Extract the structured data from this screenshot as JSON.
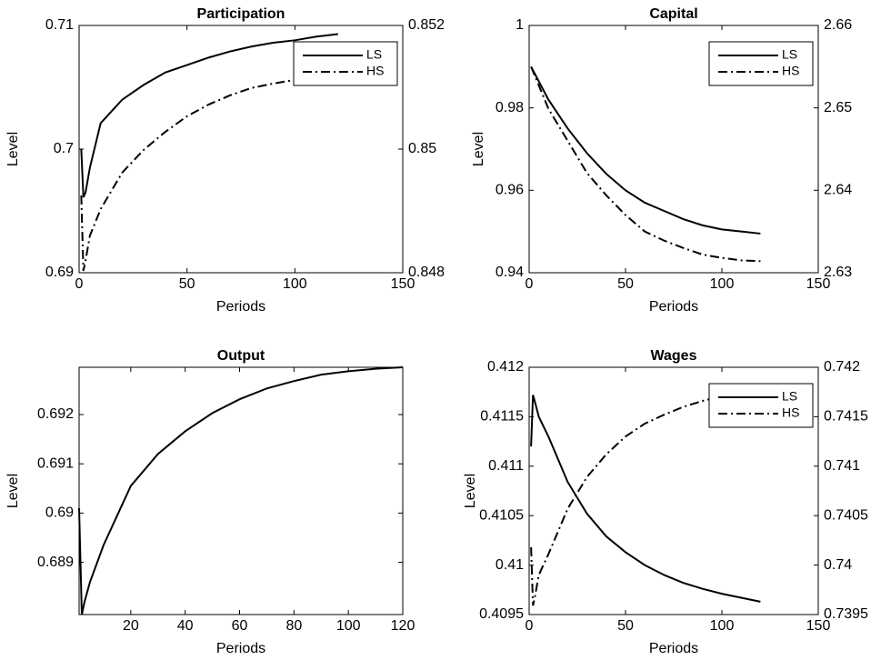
{
  "chart_data": [
    {
      "type": "line",
      "title": "Participation",
      "xlabel": "Periods",
      "ylabel": "Level",
      "x": [
        1,
        2,
        3,
        5,
        10,
        20,
        30,
        40,
        50,
        60,
        70,
        80,
        90,
        100,
        110,
        120
      ],
      "series": [
        {
          "name": "LS",
          "color": "#000000",
          "dash": "solid",
          "values": [
            0.7,
            0.6961,
            0.6965,
            0.6985,
            0.7021,
            0.704,
            0.7052,
            0.7062,
            0.7068,
            0.7074,
            0.7079,
            0.7083,
            0.7086,
            0.7088,
            0.7091,
            0.7093
          ]
        },
        {
          "name": "HS",
          "color": "#000000",
          "dash": "dashdot",
          "axis": "y2",
          "values": [
            0.84925,
            0.84803,
            0.8482,
            0.8486,
            0.84903,
            0.84962,
            0.84999,
            0.85028,
            0.85053,
            0.85072,
            0.85087,
            0.85099,
            0.85106,
            0.85112,
            0.85118,
            0.85122
          ]
        }
      ],
      "xlim": [
        0,
        150
      ],
      "xticks": [
        0,
        50,
        100,
        150
      ],
      "ylim": [
        0.69,
        0.71
      ],
      "yticks": [
        0.69,
        0.7,
        0.71
      ],
      "y2lim": [
        0.848,
        0.852
      ],
      "y2ticks": [
        0.848,
        0.85,
        0.852
      ],
      "legend": "northeast"
    },
    {
      "type": "line",
      "title": "Capital",
      "xlabel": "Periods",
      "ylabel": "Level",
      "x": [
        1,
        10,
        20,
        30,
        40,
        50,
        60,
        70,
        80,
        90,
        100,
        110,
        120
      ],
      "series": [
        {
          "name": "LS",
          "color": "#000000",
          "dash": "solid",
          "values": [
            0.99,
            0.982,
            0.975,
            0.969,
            0.964,
            0.96,
            0.957,
            0.955,
            0.953,
            0.9515,
            0.9505,
            0.95,
            0.9495
          ]
        },
        {
          "name": "HS",
          "color": "#000000",
          "dash": "dashdot",
          "axis": "y2",
          "values": [
            2.655,
            2.6499,
            2.646,
            2.6421,
            2.6394,
            2.637,
            2.635,
            2.6339,
            2.633,
            2.6322,
            2.6318,
            2.6315,
            2.6314
          ]
        }
      ],
      "xlim": [
        0,
        150
      ],
      "xticks": [
        0,
        50,
        100,
        150
      ],
      "ylim": [
        0.94,
        1
      ],
      "yticks": [
        0.94,
        0.96,
        0.98,
        1
      ],
      "y2lim": [
        2.63,
        2.66
      ],
      "y2ticks": [
        2.63,
        2.64,
        2.65,
        2.66
      ],
      "legend": "northeast"
    },
    {
      "type": "line",
      "title": "Output",
      "xlabel": "Periods",
      "ylabel": "Level",
      "x": [
        1,
        2,
        3,
        5,
        10,
        20,
        30,
        40,
        50,
        60,
        70,
        80,
        90,
        100,
        110,
        120
      ],
      "series": [
        {
          "color": "#000000",
          "dash": "solid",
          "values": [
            0.6901,
            0.68794,
            0.6882,
            0.6886,
            0.68935,
            0.69055,
            0.6912,
            0.69166,
            0.69203,
            0.69231,
            0.69253,
            0.69268,
            0.69281,
            0.69288,
            0.69293,
            0.69296
          ]
        }
      ],
      "xlim": [
        1,
        120
      ],
      "xticks": [
        20,
        40,
        60,
        80,
        100,
        120
      ],
      "ylim": [
        0.68794,
        0.69296
      ],
      "yticks": [
        0.689,
        0.69,
        0.691,
        0.692
      ]
    },
    {
      "type": "line",
      "title": "Wages",
      "xlabel": "Periods",
      "ylabel": "Level",
      "x": [
        1,
        2,
        3,
        5,
        10,
        20,
        30,
        40,
        50,
        60,
        70,
        80,
        90,
        100,
        110,
        120
      ],
      "series": [
        {
          "name": "LS",
          "color": "#000000",
          "dash": "solid",
          "values": [
            0.4112,
            0.41172,
            0.41165,
            0.4115,
            0.4113,
            0.41084,
            0.41052,
            0.41029,
            0.41013,
            0.41,
            0.4099,
            0.40982,
            0.40976,
            0.40971,
            0.40967,
            0.40963
          ]
        },
        {
          "name": "HS",
          "color": "#000000",
          "dash": "dashdot",
          "axis": "y2",
          "values": [
            0.74018,
            0.73959,
            0.73968,
            0.7399,
            0.74011,
            0.74057,
            0.74089,
            0.74112,
            0.7413,
            0.74143,
            0.74152,
            0.7416,
            0.74166,
            0.74171,
            0.74174,
            0.74177
          ]
        }
      ],
      "xlim": [
        0,
        150
      ],
      "xticks": [
        0,
        50,
        100,
        150
      ],
      "ylim": [
        0.4095,
        0.412
      ],
      "yticks": [
        0.4095,
        0.41,
        0.4105,
        0.411,
        0.4115,
        0.412
      ],
      "y2lim": [
        0.7395,
        0.742
      ],
      "y2ticks": [
        0.7395,
        0.74,
        0.7405,
        0.741,
        0.7415,
        0.742
      ],
      "legend": "northeast"
    }
  ]
}
